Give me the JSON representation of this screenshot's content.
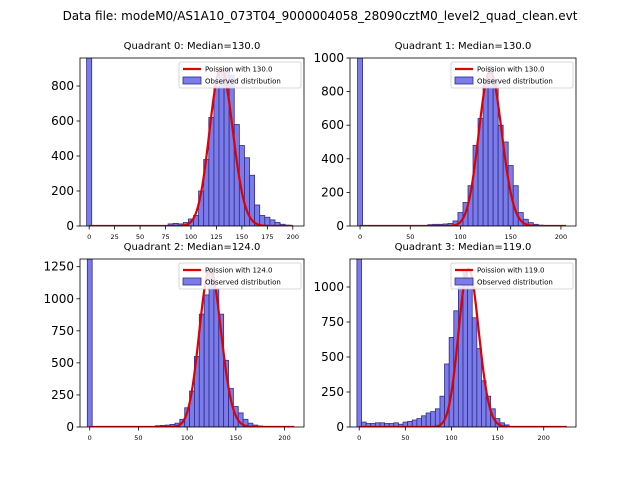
{
  "figure_title": "Data file: modeM0/AS1A10_073T04_9000004058_28090cztM0_level2_quad_clean.evt",
  "colors": {
    "bar_fill": "#7b7bea",
    "bar_edge": "#2d2d8a",
    "curve": "#e00000",
    "axis": "#000000"
  },
  "chart_data": [
    {
      "type": "bar",
      "title": "Quadrant 0: Median=130.0",
      "legend": {
        "curve": "Poission with 130.0",
        "bars": "Observed distribution",
        "placement": "top-right"
      },
      "xlim": [
        -9,
        211
      ],
      "ylim": [
        0,
        960
      ],
      "xticks": [
        0,
        25,
        50,
        75,
        100,
        125,
        150,
        175,
        200
      ],
      "yticks": [
        0,
        200,
        400,
        600,
        800
      ],
      "bin_width": 5,
      "bins": [
        [
          0,
          960
        ],
        [
          80,
          12
        ],
        [
          85,
          15
        ],
        [
          90,
          12
        ],
        [
          95,
          20
        ],
        [
          100,
          40
        ],
        [
          105,
          60
        ],
        [
          110,
          200
        ],
        [
          115,
          380
        ],
        [
          120,
          620
        ],
        [
          125,
          800
        ],
        [
          130,
          880
        ],
        [
          135,
          900
        ],
        [
          140,
          860
        ],
        [
          145,
          580
        ],
        [
          150,
          460
        ],
        [
          155,
          390
        ],
        [
          160,
          290
        ],
        [
          165,
          120
        ],
        [
          170,
          60
        ],
        [
          175,
          50
        ],
        [
          180,
          35
        ],
        [
          185,
          20
        ],
        [
          190,
          10
        ],
        [
          195,
          5
        ]
      ],
      "poisson": {
        "mean": 130,
        "peak": 900,
        "x_max": 200
      }
    },
    {
      "type": "bar",
      "title": "Quadrant 1: Median=130.0",
      "legend": {
        "curve": "Poission with 130.0",
        "bars": "Observed distribution",
        "placement": "top-right"
      },
      "xlim": [
        -10,
        215
      ],
      "ylim": [
        0,
        1000
      ],
      "xticks": [
        0,
        50,
        100,
        150,
        200
      ],
      "yticks": [
        0,
        200,
        400,
        600,
        800,
        1000
      ],
      "bin_width": 5,
      "bins": [
        [
          0,
          1000
        ],
        [
          70,
          8
        ],
        [
          75,
          10
        ],
        [
          80,
          10
        ],
        [
          85,
          12
        ],
        [
          90,
          15
        ],
        [
          95,
          30
        ],
        [
          100,
          80
        ],
        [
          105,
          140
        ],
        [
          110,
          240
        ],
        [
          115,
          480
        ],
        [
          120,
          640
        ],
        [
          125,
          860
        ],
        [
          130,
          950
        ],
        [
          135,
          860
        ],
        [
          140,
          600
        ],
        [
          145,
          500
        ],
        [
          150,
          360
        ],
        [
          155,
          240
        ],
        [
          160,
          80
        ],
        [
          165,
          40
        ],
        [
          170,
          20
        ],
        [
          175,
          10
        ],
        [
          180,
          5
        ]
      ],
      "poisson": {
        "mean": 130,
        "peak": 920,
        "x_max": 205
      }
    },
    {
      "type": "bar",
      "title": "Quadrant 2: Median=124.0",
      "legend": {
        "curve": "Poission with 124.0",
        "bars": "Observed distribution",
        "placement": "top-right"
      },
      "xlim": [
        -10,
        220
      ],
      "ylim": [
        0,
        1310
      ],
      "xticks": [
        0,
        50,
        100,
        150,
        200
      ],
      "yticks": [
        0,
        250,
        500,
        750,
        1000,
        1250
      ],
      "bin_width": 5,
      "bins": [
        [
          0,
          1310
        ],
        [
          70,
          10
        ],
        [
          75,
          12
        ],
        [
          80,
          15
        ],
        [
          85,
          20
        ],
        [
          90,
          30
        ],
        [
          95,
          60
        ],
        [
          100,
          150
        ],
        [
          105,
          280
        ],
        [
          110,
          550
        ],
        [
          115,
          880
        ],
        [
          120,
          1030
        ],
        [
          125,
          1240
        ],
        [
          130,
          1080
        ],
        [
          135,
          880
        ],
        [
          140,
          520
        ],
        [
          145,
          300
        ],
        [
          150,
          160
        ],
        [
          155,
          110
        ],
        [
          160,
          60
        ],
        [
          165,
          30
        ],
        [
          170,
          15
        ],
        [
          175,
          8
        ],
        [
          180,
          5
        ]
      ],
      "poisson": {
        "mean": 124,
        "peak": 1230,
        "x_max": 210
      }
    },
    {
      "type": "bar",
      "title": "Quadrant 3: Median=119.0",
      "legend": {
        "curve": "Poission with 119.0",
        "bars": "Observed distribution",
        "placement": "top-right"
      },
      "xlim": [
        -10,
        235
      ],
      "ylim": [
        0,
        1200
      ],
      "xticks": [
        0,
        50,
        100,
        150,
        200
      ],
      "yticks": [
        0,
        250,
        500,
        750,
        1000
      ],
      "bin_width": 5,
      "bins": [
        [
          0,
          1200
        ],
        [
          5,
          35
        ],
        [
          10,
          25
        ],
        [
          15,
          25
        ],
        [
          20,
          30
        ],
        [
          25,
          30
        ],
        [
          30,
          25
        ],
        [
          35,
          25
        ],
        [
          40,
          30
        ],
        [
          45,
          20
        ],
        [
          50,
          35
        ],
        [
          55,
          40
        ],
        [
          60,
          50
        ],
        [
          65,
          60
        ],
        [
          70,
          80
        ],
        [
          75,
          100
        ],
        [
          80,
          110
        ],
        [
          85,
          130
        ],
        [
          90,
          220
        ],
        [
          95,
          450
        ],
        [
          100,
          640
        ],
        [
          105,
          830
        ],
        [
          110,
          1000
        ],
        [
          115,
          1120
        ],
        [
          120,
          1030
        ],
        [
          125,
          780
        ],
        [
          130,
          560
        ],
        [
          135,
          330
        ],
        [
          140,
          220
        ],
        [
          145,
          130
        ],
        [
          150,
          60
        ],
        [
          155,
          30
        ],
        [
          160,
          15
        ]
      ],
      "poisson": {
        "mean": 119,
        "peak": 1130,
        "x_max": 225
      }
    }
  ]
}
